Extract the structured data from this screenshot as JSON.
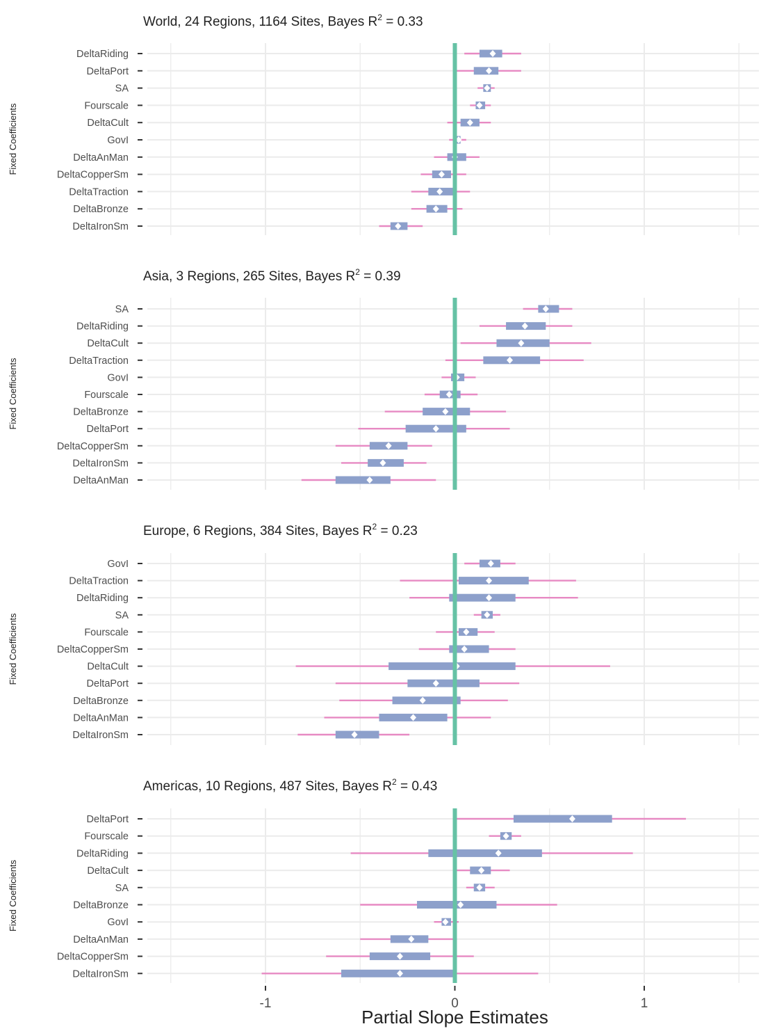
{
  "chart_data": {
    "type": "interval",
    "xlabel": "Partial Slope Estimates",
    "ylabel": "Fixed Coefficients",
    "xlim": [
      -1.6,
      1.6
    ],
    "x_ticks": [
      -1,
      0,
      1
    ],
    "x_tick_labels": [
      "-1",
      "0",
      "1"
    ],
    "reference_line": 0,
    "colors": {
      "reference_line": "#66c2a5",
      "inner_interval": "#8da0cb",
      "outer_interval": "#e78ac3",
      "point": "#ffffff",
      "grid": "#ebebeb"
    },
    "panels": [
      {
        "title_main": "World, 24 Regions, 1164 Sites, Bayes R",
        "title_sup": "2",
        "title_tail": " = 0.33",
        "rows": [
          {
            "label": "DeltaRiding",
            "estimate": 0.2,
            "inner": [
              0.13,
              0.25
            ],
            "outer": [
              0.05,
              0.35
            ]
          },
          {
            "label": "DeltaPort",
            "estimate": 0.18,
            "inner": [
              0.1,
              0.23
            ],
            "outer": [
              0.0,
              0.35
            ]
          },
          {
            "label": "SA",
            "estimate": 0.17,
            "inner": [
              0.15,
              0.19
            ],
            "outer": [
              0.12,
              0.21
            ]
          },
          {
            "label": "Fourscale",
            "estimate": 0.13,
            "inner": [
              0.11,
              0.16
            ],
            "outer": [
              0.08,
              0.19
            ]
          },
          {
            "label": "DeltaCult",
            "estimate": 0.08,
            "inner": [
              0.03,
              0.13
            ],
            "outer": [
              -0.04,
              0.19
            ]
          },
          {
            "label": "GovI",
            "estimate": 0.02,
            "inner": [
              0.0,
              0.03
            ],
            "outer": [
              -0.03,
              0.06
            ]
          },
          {
            "label": "DeltaAnMan",
            "estimate": 0.0,
            "inner": [
              -0.04,
              0.06
            ],
            "outer": [
              -0.11,
              0.13
            ]
          },
          {
            "label": "DeltaCopperSm",
            "estimate": -0.07,
            "inner": [
              -0.12,
              -0.02
            ],
            "outer": [
              -0.18,
              0.06
            ]
          },
          {
            "label": "DeltaTraction",
            "estimate": -0.08,
            "inner": [
              -0.14,
              -0.01
            ],
            "outer": [
              -0.23,
              0.08
            ]
          },
          {
            "label": "DeltaBronze",
            "estimate": -0.1,
            "inner": [
              -0.15,
              -0.04
            ],
            "outer": [
              -0.23,
              0.04
            ]
          },
          {
            "label": "DeltaIronSm",
            "estimate": -0.3,
            "inner": [
              -0.34,
              -0.25
            ],
            "outer": [
              -0.4,
              -0.17
            ]
          }
        ]
      },
      {
        "title_main": "Asia, 3 Regions, 265 Sites, Bayes R",
        "title_sup": "2",
        "title_tail": " = 0.39",
        "rows": [
          {
            "label": "SA",
            "estimate": 0.48,
            "inner": [
              0.44,
              0.55
            ],
            "outer": [
              0.36,
              0.62
            ]
          },
          {
            "label": "DeltaRiding",
            "estimate": 0.37,
            "inner": [
              0.27,
              0.48
            ],
            "outer": [
              0.13,
              0.62
            ]
          },
          {
            "label": "DeltaCult",
            "estimate": 0.35,
            "inner": [
              0.22,
              0.5
            ],
            "outer": [
              0.03,
              0.72
            ]
          },
          {
            "label": "DeltaTraction",
            "estimate": 0.29,
            "inner": [
              0.15,
              0.45
            ],
            "outer": [
              -0.05,
              0.68
            ]
          },
          {
            "label": "GovI",
            "estimate": 0.01,
            "inner": [
              -0.02,
              0.05
            ],
            "outer": [
              -0.07,
              0.11
            ]
          },
          {
            "label": "Fourscale",
            "estimate": -0.03,
            "inner": [
              -0.08,
              0.03
            ],
            "outer": [
              -0.16,
              0.12
            ]
          },
          {
            "label": "DeltaBronze",
            "estimate": -0.05,
            "inner": [
              -0.17,
              0.08
            ],
            "outer": [
              -0.37,
              0.27
            ]
          },
          {
            "label": "DeltaPort",
            "estimate": -0.1,
            "inner": [
              -0.26,
              0.06
            ],
            "outer": [
              -0.51,
              0.29
            ]
          },
          {
            "label": "DeltaCopperSm",
            "estimate": -0.35,
            "inner": [
              -0.45,
              -0.25
            ],
            "outer": [
              -0.63,
              -0.12
            ]
          },
          {
            "label": "DeltaIronSm",
            "estimate": -0.38,
            "inner": [
              -0.46,
              -0.27
            ],
            "outer": [
              -0.6,
              -0.15
            ]
          },
          {
            "label": "DeltaAnMan",
            "estimate": -0.45,
            "inner": [
              -0.63,
              -0.34
            ],
            "outer": [
              -0.81,
              -0.1
            ]
          }
        ]
      },
      {
        "title_main": "Europe, 6 Regions, 384 Sites, Bayes R",
        "title_sup": "2",
        "title_tail": " = 0.23",
        "rows": [
          {
            "label": "GovI",
            "estimate": 0.19,
            "inner": [
              0.13,
              0.24
            ],
            "outer": [
              0.05,
              0.32
            ]
          },
          {
            "label": "DeltaTraction",
            "estimate": 0.18,
            "inner": [
              0.02,
              0.39
            ],
            "outer": [
              -0.29,
              0.64
            ]
          },
          {
            "label": "DeltaRiding",
            "estimate": 0.18,
            "inner": [
              -0.03,
              0.32
            ],
            "outer": [
              -0.24,
              0.65
            ]
          },
          {
            "label": "SA",
            "estimate": 0.17,
            "inner": [
              0.14,
              0.2
            ],
            "outer": [
              0.1,
              0.24
            ]
          },
          {
            "label": "Fourscale",
            "estimate": 0.06,
            "inner": [
              0.02,
              0.12
            ],
            "outer": [
              -0.1,
              0.21
            ]
          },
          {
            "label": "DeltaCopperSm",
            "estimate": 0.05,
            "inner": [
              -0.03,
              0.18
            ],
            "outer": [
              -0.19,
              0.32
            ]
          },
          {
            "label": "DeltaCult",
            "estimate": 0.01,
            "inner": [
              -0.35,
              0.32
            ],
            "outer": [
              -0.84,
              0.82
            ]
          },
          {
            "label": "DeltaPort",
            "estimate": -0.1,
            "inner": [
              -0.25,
              0.13
            ],
            "outer": [
              -0.63,
              0.34
            ]
          },
          {
            "label": "DeltaBronze",
            "estimate": -0.17,
            "inner": [
              -0.33,
              0.03
            ],
            "outer": [
              -0.61,
              0.28
            ]
          },
          {
            "label": "DeltaAnMan",
            "estimate": -0.22,
            "inner": [
              -0.4,
              -0.04
            ],
            "outer": [
              -0.69,
              0.19
            ]
          },
          {
            "label": "DeltaIronSm",
            "estimate": -0.53,
            "inner": [
              -0.63,
              -0.4
            ],
            "outer": [
              -0.83,
              -0.24
            ]
          }
        ]
      },
      {
        "title_main": "Americas, 10 Regions, 487 Sites, Bayes R",
        "title_sup": "2",
        "title_tail": " = 0.43",
        "rows": [
          {
            "label": "DeltaPort",
            "estimate": 0.62,
            "inner": [
              0.31,
              0.83
            ],
            "outer": [
              0.0,
              1.22
            ]
          },
          {
            "label": "Fourscale",
            "estimate": 0.27,
            "inner": [
              0.24,
              0.3
            ],
            "outer": [
              0.18,
              0.35
            ]
          },
          {
            "label": "DeltaRiding",
            "estimate": 0.23,
            "inner": [
              -0.14,
              0.46
            ],
            "outer": [
              -0.55,
              0.94
            ]
          },
          {
            "label": "DeltaCult",
            "estimate": 0.14,
            "inner": [
              0.08,
              0.19
            ],
            "outer": [
              0.0,
              0.29
            ]
          },
          {
            "label": "SA",
            "estimate": 0.13,
            "inner": [
              0.1,
              0.16
            ],
            "outer": [
              0.06,
              0.21
            ]
          },
          {
            "label": "DeltaBronze",
            "estimate": 0.03,
            "inner": [
              -0.2,
              0.22
            ],
            "outer": [
              -0.5,
              0.54
            ]
          },
          {
            "label": "GovI",
            "estimate": -0.05,
            "inner": [
              -0.07,
              -0.02
            ],
            "outer": [
              -0.11,
              0.02
            ]
          },
          {
            "label": "DeltaAnMan",
            "estimate": -0.23,
            "inner": [
              -0.34,
              -0.14
            ],
            "outer": [
              -0.5,
              0.0
            ]
          },
          {
            "label": "DeltaCopperSm",
            "estimate": -0.29,
            "inner": [
              -0.45,
              -0.13
            ],
            "outer": [
              -0.68,
              0.1
            ]
          },
          {
            "label": "DeltaIronSm",
            "estimate": -0.29,
            "inner": [
              -0.6,
              0.0
            ],
            "outer": [
              -1.02,
              0.44
            ]
          }
        ]
      }
    ]
  }
}
